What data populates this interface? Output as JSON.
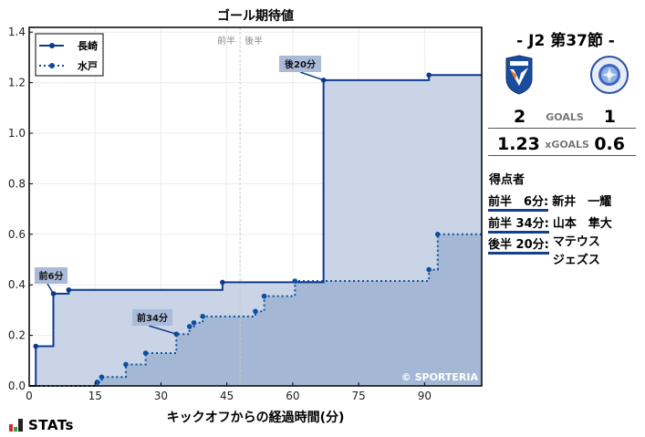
{
  "chart_data": {
    "type": "line",
    "subtype": "step-area",
    "title": "ゴール期待値",
    "xlabel": "キックオフからの経過時間(分)",
    "ylabel": "",
    "xlim": [
      0,
      103
    ],
    "ylim": [
      0,
      1.42
    ],
    "x_ticks": [
      0,
      15,
      30,
      45,
      60,
      75,
      90
    ],
    "y_ticks": [
      0.0,
      0.2,
      0.4,
      0.6,
      0.8,
      1.0,
      1.2,
      1.4
    ],
    "grid": true,
    "legend_position": "upper left",
    "halftime_line": {
      "x": 48,
      "labels": [
        "前半",
        "後半"
      ]
    },
    "series": [
      {
        "name": "長崎",
        "style": "solid",
        "color": "#0d3a8c",
        "fill": "#c9d4e7",
        "points": [
          [
            1.5,
            0.157
          ],
          [
            5.5,
            0.365
          ],
          [
            9,
            0.38
          ],
          [
            44,
            0.41
          ],
          [
            67,
            1.21
          ],
          [
            91,
            1.23
          ],
          [
            103,
            1.23
          ]
        ]
      },
      {
        "name": "水戸",
        "style": "dotted",
        "color": "#0b4fa0",
        "fill": "#a4b8d6",
        "points": [
          [
            15.5,
            0.015
          ],
          [
            16.5,
            0.035
          ],
          [
            22,
            0.085
          ],
          [
            26.5,
            0.13
          ],
          [
            33.5,
            0.205
          ],
          [
            36.5,
            0.235
          ],
          [
            37.5,
            0.25
          ],
          [
            39.5,
            0.275
          ],
          [
            51.5,
            0.295
          ],
          [
            53.5,
            0.355
          ],
          [
            60.5,
            0.415
          ],
          [
            91,
            0.46
          ],
          [
            93,
            0.6
          ],
          [
            103,
            0.6
          ]
        ]
      }
    ],
    "annotations": [
      {
        "text": "前6分",
        "x": 5.5,
        "y": 0.365
      },
      {
        "text": "前34分",
        "x": 33.5,
        "y": 0.205
      },
      {
        "text": "後20分",
        "x": 67,
        "y": 1.21
      }
    ],
    "watermark": "© SPORTERIA"
  },
  "match": {
    "title": "- J2 第37節 -",
    "home": {
      "name": "長崎",
      "goals": "2",
      "xgoals": "1.23",
      "crest_icon": "v-varen-crest-icon",
      "color": "#1a4d9e"
    },
    "away": {
      "name": "水戸",
      "goals": "1",
      "xgoals": "0.6",
      "crest_icon": "mito-hollyhock-crest-icon",
      "color": "#2c4fa8"
    },
    "goals_label": "GOALS",
    "xgoals_label": "xGOALS"
  },
  "scorers": {
    "title": "得点者",
    "items": [
      {
        "time": "前半　6分:",
        "name": "新井　一耀"
      },
      {
        "time": "前半 34分:",
        "name": "山本　隼大"
      },
      {
        "time": "後半 20分:",
        "name": "マテウス\nジェズス"
      }
    ]
  },
  "brand": {
    "text": "STATs",
    "icon": "stats-bars-icon"
  }
}
